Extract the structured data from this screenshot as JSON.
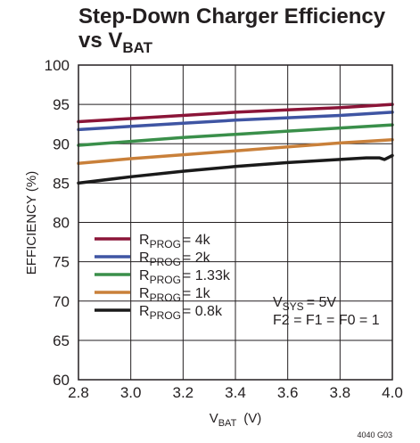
{
  "chart_data": {
    "type": "line",
    "title_line1": "Step-Down Charger Efficiency",
    "title_line2_main": "vs V",
    "title_line2_sub": "BAT",
    "xlabel_main": "V",
    "xlabel_sub": "BAT",
    "xlabel_unit": "(V)",
    "ylabel": "EFFICIENCY (%)",
    "xlim": [
      2.8,
      4.0
    ],
    "ylim": [
      60,
      100
    ],
    "xticks": [
      2.8,
      3.0,
      3.2,
      3.4,
      3.6,
      3.8,
      4.0
    ],
    "xtick_labels": [
      "2.8",
      "3.0",
      "3.2",
      "3.4",
      "3.6",
      "3.8",
      "4.0"
    ],
    "yticks": [
      60,
      65,
      70,
      75,
      80,
      85,
      90,
      95,
      100
    ],
    "ytick_labels": [
      "60",
      "65",
      "70",
      "75",
      "80",
      "85",
      "90",
      "95",
      "100"
    ],
    "grid": true,
    "legend_placement": "lower-left",
    "series": [
      {
        "name_main": "R",
        "name_sub": "PROG",
        "name_value": "= 4k",
        "color": "#8b1538",
        "x": [
          2.8,
          3.0,
          3.2,
          3.4,
          3.6,
          3.8,
          4.0
        ],
        "y": [
          92.8,
          93.2,
          93.6,
          94.0,
          94.3,
          94.6,
          95.0
        ]
      },
      {
        "name_main": "R",
        "name_sub": "PROG",
        "name_value": "= 2k",
        "color": "#3f55a3",
        "x": [
          2.8,
          3.0,
          3.2,
          3.4,
          3.6,
          3.8,
          4.0
        ],
        "y": [
          91.8,
          92.2,
          92.6,
          93.0,
          93.3,
          93.6,
          94.0
        ]
      },
      {
        "name_main": "R",
        "name_sub": "PROG",
        "name_value": "= 1.33k",
        "color": "#3a8f4a",
        "x": [
          2.8,
          3.0,
          3.2,
          3.4,
          3.6,
          3.8,
          4.0
        ],
        "y": [
          89.8,
          90.3,
          90.8,
          91.2,
          91.6,
          92.0,
          92.4
        ]
      },
      {
        "name_main": "R",
        "name_sub": "PROG",
        "name_value": "= 1k",
        "color": "#c9803a",
        "x": [
          2.8,
          3.0,
          3.2,
          3.4,
          3.6,
          3.8,
          4.0
        ],
        "y": [
          87.5,
          88.1,
          88.6,
          89.1,
          89.6,
          90.1,
          90.5
        ]
      },
      {
        "name_main": "R",
        "name_sub": "PROG",
        "name_value": "= 0.8k",
        "color": "#1a1a1a",
        "x": [
          2.8,
          3.0,
          3.2,
          3.4,
          3.6,
          3.8,
          3.9,
          3.95,
          3.97,
          4.0
        ],
        "y": [
          85.0,
          85.8,
          86.5,
          87.1,
          87.6,
          88.0,
          88.2,
          88.2,
          88.0,
          88.5
        ]
      }
    ],
    "annotation_line1_main": "V",
    "annotation_line1_sub": "SYS",
    "annotation_line1_value": "= 5V",
    "annotation_line2": "F2 = F1 = F0 = 1",
    "figure_code": "4040 G03"
  }
}
